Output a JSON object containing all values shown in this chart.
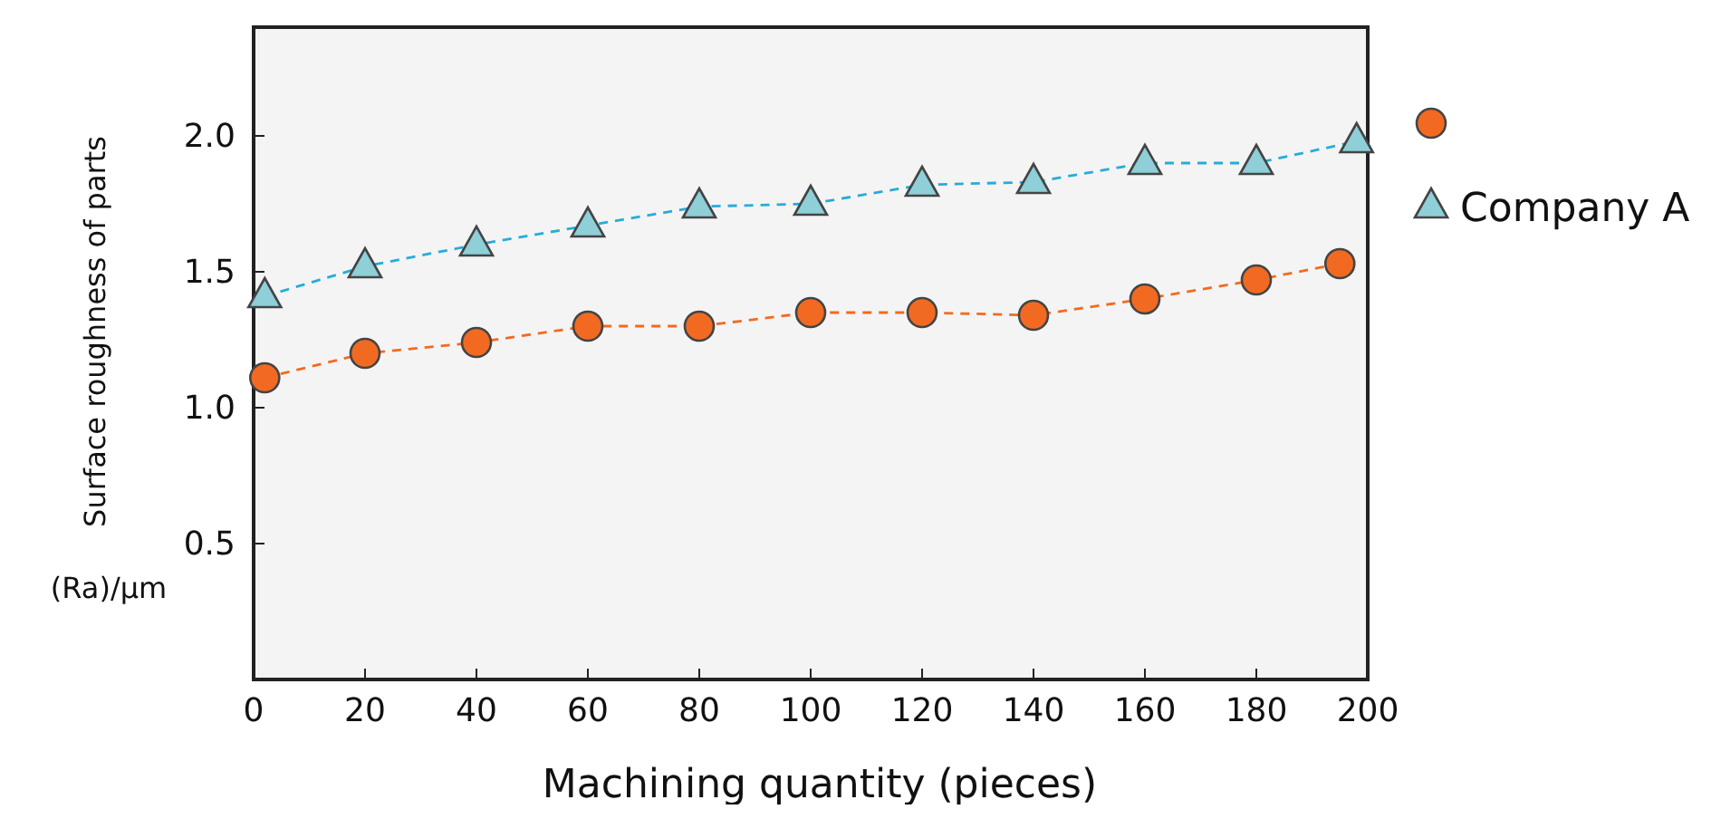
{
  "chart_data": {
    "type": "line",
    "xlabel": "Machining quantity (pieces)",
    "ylabel": "Surface roughness of parts (Ra)/μm",
    "xlim": [
      0,
      200
    ],
    "ylim": [
      0,
      2.4
    ],
    "xticks": [
      0,
      20,
      40,
      60,
      80,
      100,
      120,
      140,
      160,
      180,
      200
    ],
    "yticks": [
      0.5,
      {
        "value": 1,
        "label": "1.0"
      },
      1.5,
      {
        "value": 2,
        "label": "2.0"
      }
    ],
    "grid": false,
    "legend": "top right",
    "line_style": "dashed",
    "series": [
      {
        "color": "#f26a21",
        "marker": "circle",
        "x": [
          2,
          20,
          40,
          60,
          80,
          100,
          120,
          140,
          160,
          180,
          195
        ],
        "values": [
          1.11,
          1.2,
          1.24,
          1.3,
          1.3,
          1.35,
          1.35,
          1.34,
          1.4,
          1.47,
          1.53
        ]
      },
      {
        "name": "Company A",
        "color": "#8ecfd8",
        "marker": "triangle",
        "x": [
          2,
          20,
          40,
          60,
          80,
          100,
          120,
          140,
          160,
          180,
          198
        ],
        "values": [
          1.41,
          1.52,
          1.6,
          1.67,
          1.74,
          1.75,
          1.82,
          1.83,
          1.9,
          1.9,
          1.98
        ]
      }
    ]
  }
}
